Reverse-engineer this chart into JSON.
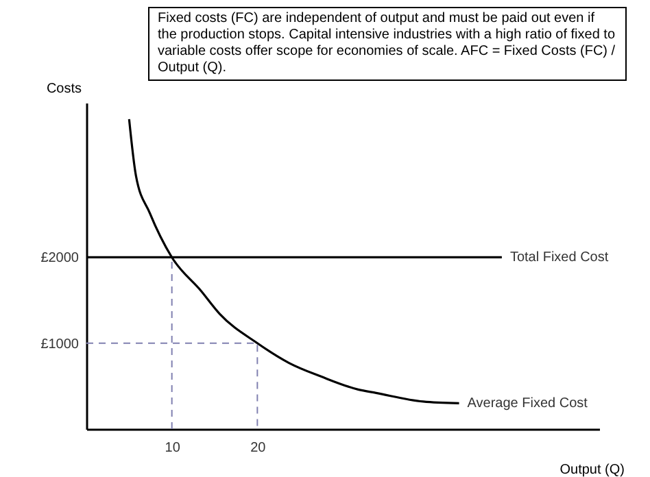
{
  "chart_data": {
    "type": "line",
    "title": "Fixed costs (FC) are independent of output and must be paid out even if the production stops. Capital intensive industries with a high ratio of fixed to variable costs offer scope for economies of scale. AFC = Fixed Costs (FC) / Output (Q).",
    "xlabel": "Output (Q)",
    "ylabel": "Costs",
    "xlim": [
      0,
      60
    ],
    "ylim": [
      0,
      3800
    ],
    "xticks": [
      10,
      20
    ],
    "yticks": [
      {
        "value": 1000,
        "label": "£1000"
      },
      {
        "value": 2000,
        "label": "£2000"
      }
    ],
    "grid": false,
    "series": [
      {
        "name": "Total Fixed Cost",
        "color": "#000000",
        "line_style": "solid",
        "x": [
          0,
          48.6
        ],
        "values": [
          2000,
          2000
        ]
      },
      {
        "name": "Average Fixed Cost",
        "color": "#000000",
        "line_style": "solid",
        "x": [
          5.0,
          5.8,
          7.4,
          10,
          13.4,
          15.6,
          20,
          23.7,
          27.5,
          31.8,
          33.9,
          39.4,
          43.6
        ],
        "values": [
          3610,
          2950,
          2520,
          2000,
          1610,
          1340,
          1000,
          770,
          610,
          460,
          420,
          320,
          300
        ]
      },
      {
        "color": "#8080b0",
        "line_style": "dashed",
        "x": [
          10,
          10
        ],
        "values": [
          0,
          2000
        ]
      },
      {
        "color": "#8080b0",
        "line_style": "dashed",
        "x": [
          0,
          20,
          20
        ],
        "values": [
          1000,
          1000,
          0
        ]
      }
    ]
  }
}
